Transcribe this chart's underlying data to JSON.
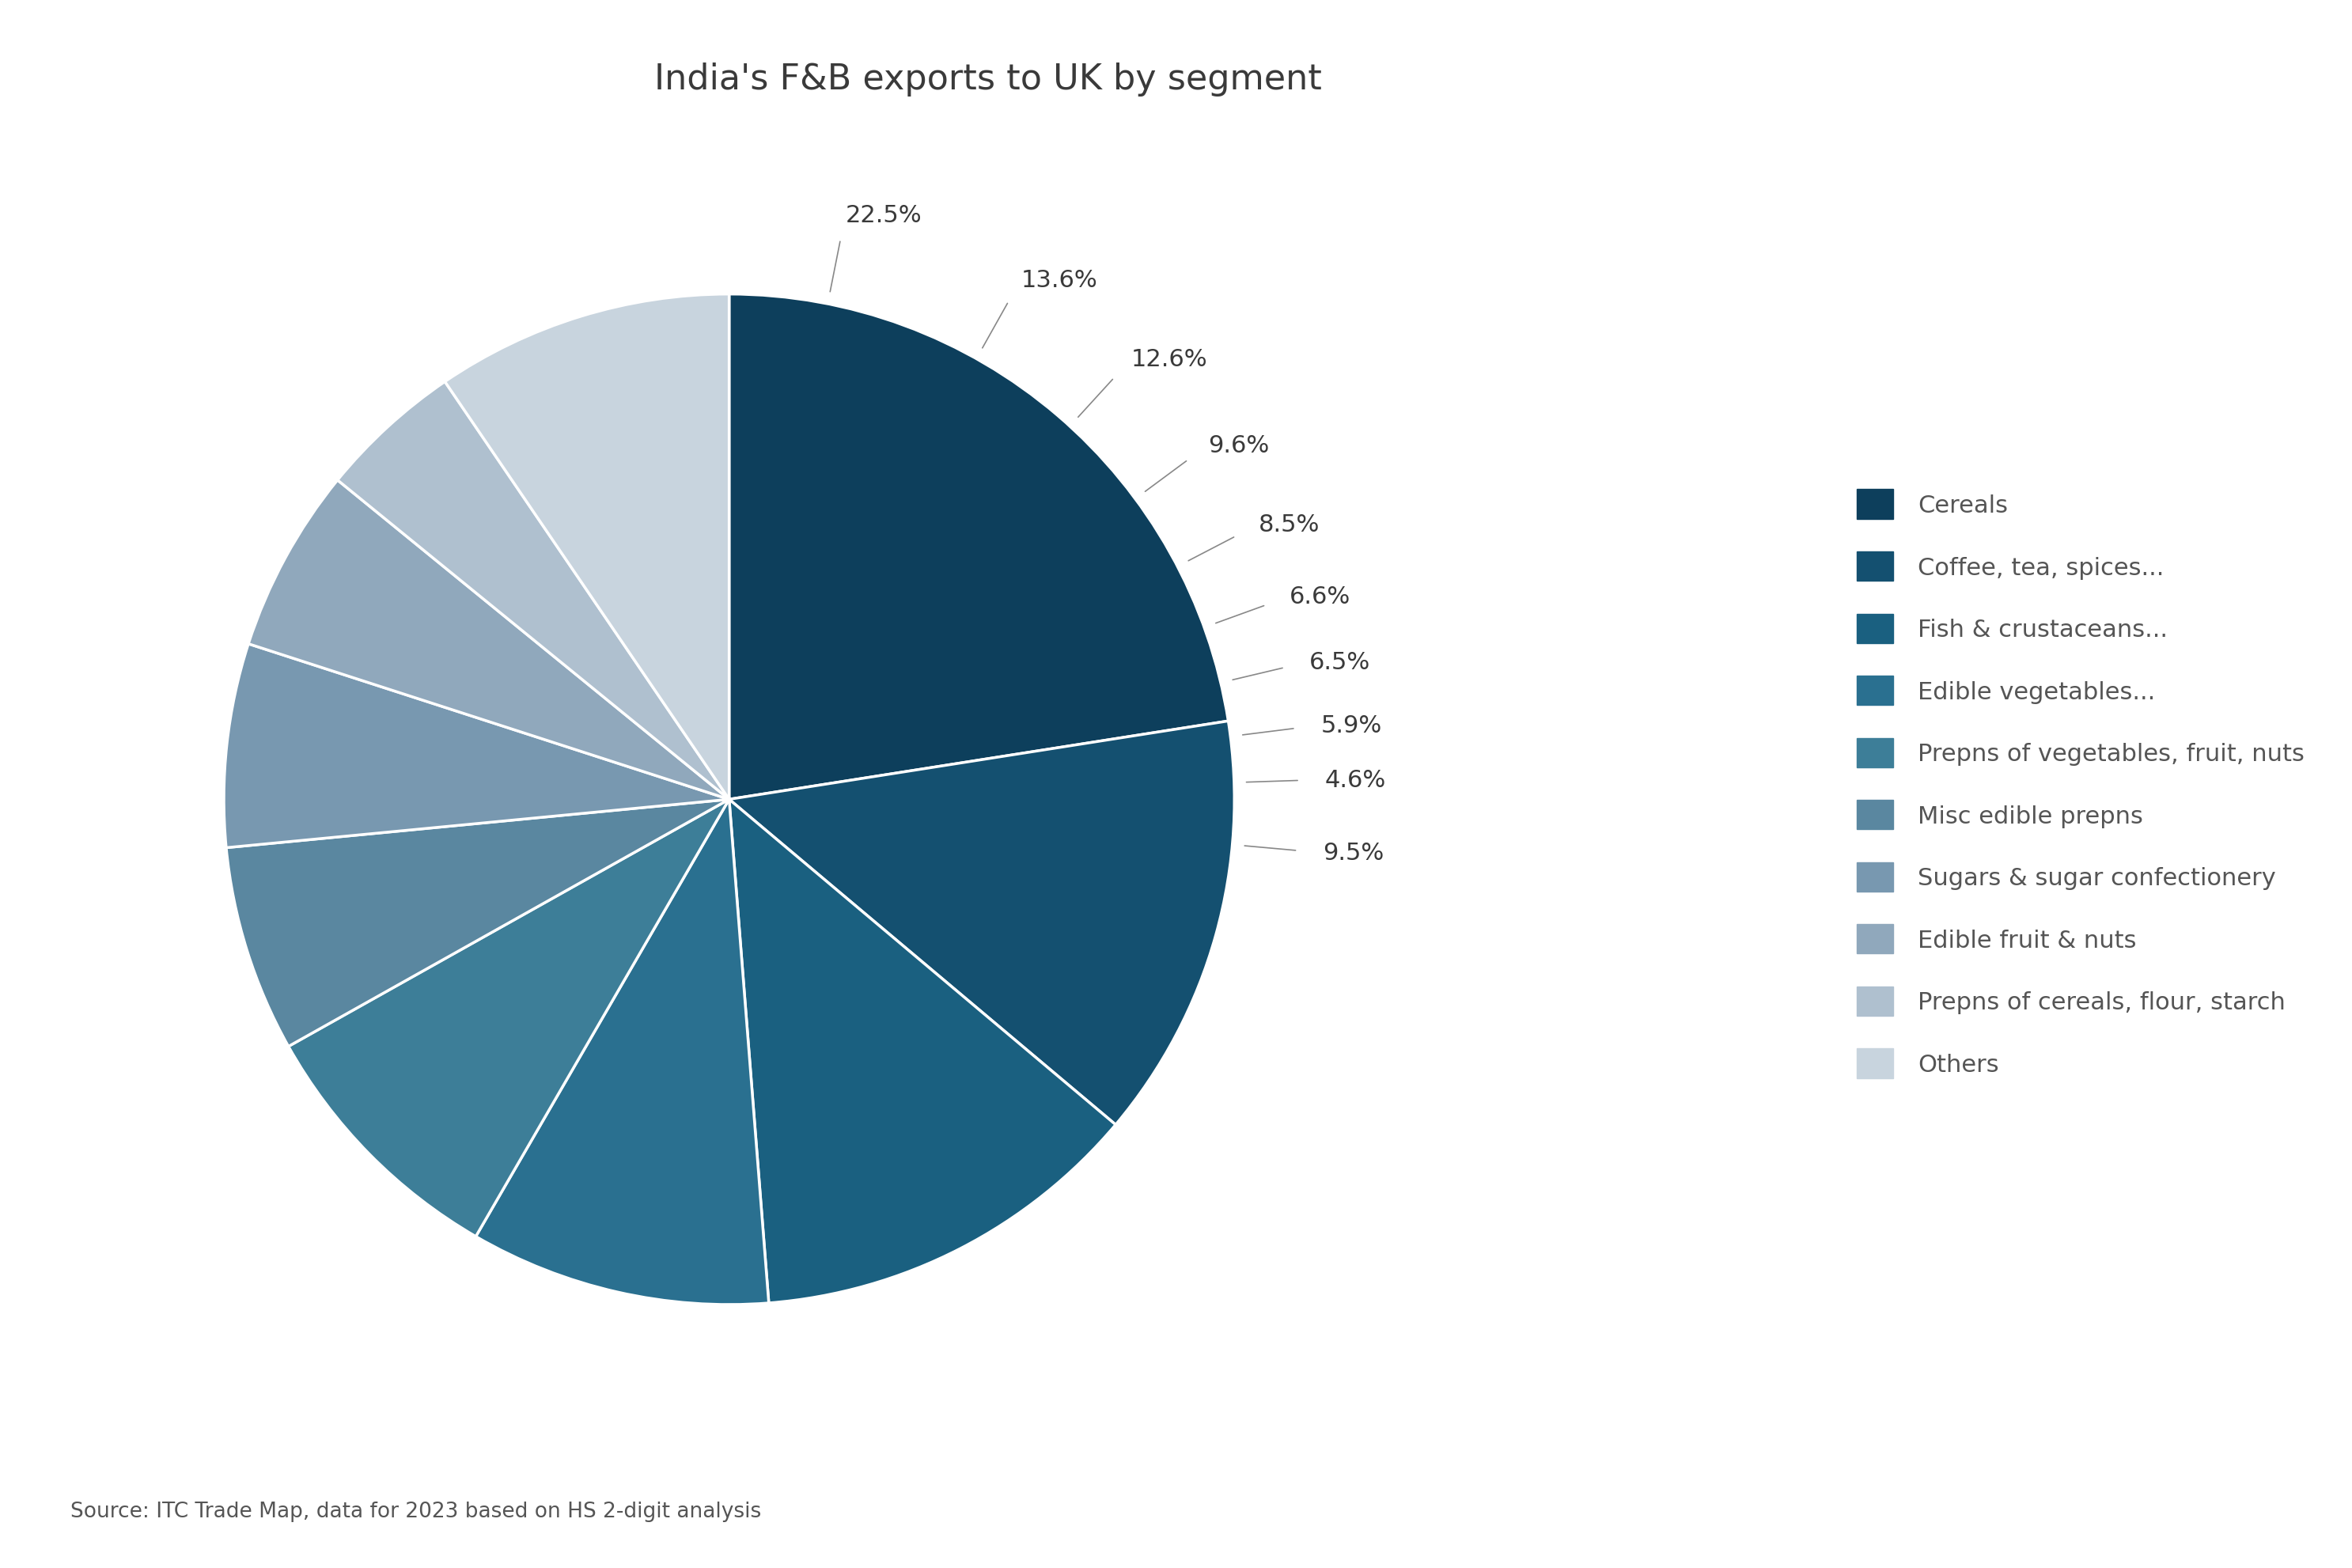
{
  "title": "India's F&B exports to UK by segment",
  "source_text": "Source: ITC Trade Map, data for 2023 based on HS 2-digit analysis",
  "segments": [
    {
      "label": "Cereals",
      "value": 22.5,
      "color": "#0d3f5c"
    },
    {
      "label": "Coffee, tea, spices...",
      "value": 13.6,
      "color": "#145070"
    },
    {
      "label": "Fish & crustaceans...",
      "value": 12.6,
      "color": "#1a6080"
    },
    {
      "label": "Edible vegetables...",
      "value": 9.6,
      "color": "#2a7090"
    },
    {
      "label": "Prepns of vegetables, fruit, nuts",
      "value": 8.5,
      "color": "#3d7e98"
    },
    {
      "label": "Misc edible prepns",
      "value": 6.6,
      "color": "#5a87a0"
    },
    {
      "label": "Sugars & sugar confectionery",
      "value": 6.5,
      "color": "#7898b0"
    },
    {
      "label": "Edible fruit & nuts",
      "value": 5.9,
      "color": "#90a8bc"
    },
    {
      "label": "Prepns of cereals, flour, starch",
      "value": 4.6,
      "color": "#afc0cf"
    },
    {
      "label": "Others",
      "value": 9.5,
      "color": "#c8d4de"
    }
  ],
  "pct_labels": [
    "22.5%",
    "13.6%",
    "12.6%",
    "9.6%",
    "8.5%",
    "6.6%",
    "6.5%",
    "5.9%",
    "4.6%",
    "9.5%"
  ],
  "startangle": 90,
  "background_color": "#ffffff",
  "title_fontsize": 32,
  "label_fontsize": 22,
  "legend_fontsize": 22,
  "source_fontsize": 19
}
